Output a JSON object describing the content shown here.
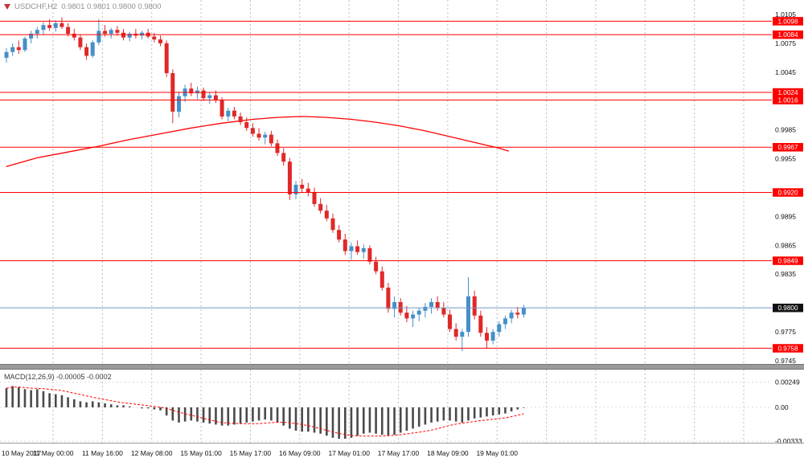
{
  "header": {
    "symbol": "USDCHF,H2",
    "ohlc": "0.9801 0.9801 0.9800 0.9800"
  },
  "macd_panel": {
    "label": "MACD(12,26,9) -0.00005 -0.0002"
  },
  "colors": {
    "bull": "#4590c8",
    "bear": "#e02828",
    "hline": "#ff0000",
    "grid": "#bdbdbd",
    "ma": "#ff0000",
    "signal": "#ff0000",
    "macd_bar": "#4a4a4a",
    "bid_line": "#7596c8",
    "current_label_bg": "#111111",
    "separator": "#9a9a9a",
    "axis_text": "#111111",
    "header_text": "#8f8f8f"
  },
  "chart_data": {
    "type": "candlestick",
    "title": "USDCHF,H2",
    "indicator": "MACD(12,26,9)",
    "x_labels": [
      "10 May 2017",
      "11 May 00:00",
      "11 May 16:00",
      "12 May 08:00",
      "15 May 01:00",
      "15 May 17:00",
      "16 May 09:00",
      "17 May 01:00",
      "17 May 17:00",
      "18 May 09:00",
      "19 May 01:00"
    ],
    "y_ticks": [
      1.0105,
      1.0075,
      1.0045,
      0.9985,
      0.9955,
      0.9895,
      0.9865,
      0.9835,
      0.9775,
      0.9745
    ],
    "hlines": [
      1.0098,
      1.0084,
      1.0024,
      1.0016,
      0.9967,
      0.992,
      0.9849,
      0.9758
    ],
    "current_price": 0.98,
    "candles": [
      [
        1.006,
        1.007,
        1.0055,
        1.0066
      ],
      [
        1.0066,
        1.0075,
        1.0062,
        1.0071
      ],
      [
        1.0071,
        1.0078,
        1.0064,
        1.0068
      ],
      [
        1.0068,
        1.0082,
        1.0066,
        1.008
      ],
      [
        1.008,
        1.0088,
        1.0075,
        1.0085
      ],
      [
        1.0085,
        1.0092,
        1.008,
        1.0089
      ],
      [
        1.0089,
        1.0097,
        1.0084,
        1.0094
      ],
      [
        1.0094,
        1.01,
        1.0088,
        1.0091
      ],
      [
        1.0091,
        1.0099,
        1.0087,
        1.0096
      ],
      [
        1.0096,
        1.0102,
        1.009,
        1.0092
      ],
      [
        1.0092,
        1.0096,
        1.0082,
        1.0085
      ],
      [
        1.0085,
        1.009,
        1.0078,
        1.0081
      ],
      [
        1.0081,
        1.0084,
        1.0068,
        1.0071
      ],
      [
        1.0071,
        1.0075,
        1.0058,
        1.0062
      ],
      [
        1.0062,
        1.0078,
        1.006,
        1.0076
      ],
      [
        1.0076,
        1.01,
        1.0073,
        1.0088
      ],
      [
        1.0088,
        1.0094,
        1.0082,
        1.0085
      ],
      [
        1.0085,
        1.0091,
        1.008,
        1.0089
      ],
      [
        1.0089,
        1.0093,
        1.0083,
        1.0086
      ],
      [
        1.0086,
        1.009,
        1.0078,
        1.0081
      ],
      [
        1.0081,
        1.0087,
        1.0077,
        1.0085
      ],
      [
        1.0085,
        1.009,
        1.008,
        1.0083
      ],
      [
        1.0083,
        1.0088,
        1.0079,
        1.0086
      ],
      [
        1.0086,
        1.009,
        1.008,
        1.0082
      ],
      [
        1.0082,
        1.0086,
        1.0076,
        1.0079
      ],
      [
        1.0079,
        1.0083,
        1.0072,
        1.0075
      ],
      [
        1.0075,
        1.0078,
        1.004,
        1.0044
      ],
      [
        1.0044,
        1.0048,
        0.9992,
        1.0004
      ],
      [
        1.0004,
        1.0025,
        0.9998,
        1.002
      ],
      [
        1.002,
        1.0032,
        1.0014,
        1.0028
      ],
      [
        1.0028,
        1.0034,
        1.002,
        1.0023
      ],
      [
        1.0023,
        1.003,
        1.0017,
        1.0026
      ],
      [
        1.0026,
        1.0029,
        1.0015,
        1.0018
      ],
      [
        1.0018,
        1.0024,
        1.0012,
        1.0021
      ],
      [
        1.0021,
        1.0026,
        1.0013,
        1.0016
      ],
      [
        1.0016,
        1.0019,
        0.9996,
        0.9999
      ],
      [
        0.9999,
        1.0008,
        0.9994,
        1.0005
      ],
      [
        1.0005,
        1.0009,
        0.9996,
        0.9999
      ],
      [
        0.9999,
        1.0003,
        0.999,
        0.9993
      ],
      [
        0.9993,
        0.9998,
        0.9984,
        0.9987
      ],
      [
        0.9987,
        0.9992,
        0.9978,
        0.9981
      ],
      [
        0.9981,
        0.9987,
        0.9974,
        0.9977
      ],
      [
        0.9977,
        0.9983,
        0.997,
        0.998
      ],
      [
        0.998,
        0.9984,
        0.9968,
        0.9971
      ],
      [
        0.9971,
        0.9975,
        0.9958,
        0.9961
      ],
      [
        0.9961,
        0.9966,
        0.9948,
        0.9952
      ],
      [
        0.9952,
        0.9956,
        0.9912,
        0.9918
      ],
      [
        0.9918,
        0.9932,
        0.9913,
        0.9928
      ],
      [
        0.9928,
        0.9934,
        0.992,
        0.9924
      ],
      [
        0.9924,
        0.993,
        0.9916,
        0.992
      ],
      [
        0.992,
        0.9925,
        0.9905,
        0.9908
      ],
      [
        0.9908,
        0.9914,
        0.9898,
        0.9901
      ],
      [
        0.9901,
        0.9907,
        0.989,
        0.9893
      ],
      [
        0.9893,
        0.9898,
        0.9878,
        0.9881
      ],
      [
        0.9881,
        0.9886,
        0.9868,
        0.9871
      ],
      [
        0.9871,
        0.9877,
        0.9855,
        0.9859
      ],
      [
        0.9859,
        0.9868,
        0.985,
        0.9864
      ],
      [
        0.9864,
        0.987,
        0.9855,
        0.9858
      ],
      [
        0.9858,
        0.9866,
        0.9851,
        0.9862
      ],
      [
        0.9862,
        0.9865,
        0.9845,
        0.9848
      ],
      [
        0.9848,
        0.9853,
        0.9835,
        0.9838
      ],
      [
        0.9838,
        0.9843,
        0.9818,
        0.9821
      ],
      [
        0.9821,
        0.9826,
        0.9795,
        0.9799
      ],
      [
        0.9799,
        0.9812,
        0.979,
        0.9806
      ],
      [
        0.9806,
        0.981,
        0.9792,
        0.9795
      ],
      [
        0.9795,
        0.9802,
        0.9785,
        0.9789
      ],
      [
        0.9789,
        0.9797,
        0.978,
        0.9793
      ],
      [
        0.9793,
        0.98,
        0.9786,
        0.9797
      ],
      [
        0.9797,
        0.9805,
        0.979,
        0.9801
      ],
      [
        0.9801,
        0.981,
        0.9794,
        0.9806
      ],
      [
        0.9806,
        0.9812,
        0.9797,
        0.98
      ],
      [
        0.98,
        0.9806,
        0.979,
        0.9793
      ],
      [
        0.9793,
        0.9798,
        0.9775,
        0.9778
      ],
      [
        0.9778,
        0.9784,
        0.9766,
        0.977
      ],
      [
        0.977,
        0.9778,
        0.9755,
        0.9775
      ],
      [
        0.9775,
        0.9832,
        0.977,
        0.9812
      ],
      [
        0.9812,
        0.9818,
        0.9788,
        0.9792
      ],
      [
        0.9792,
        0.9797,
        0.977,
        0.9774
      ],
      [
        0.9774,
        0.978,
        0.9758,
        0.9766
      ],
      [
        0.9766,
        0.9778,
        0.9762,
        0.9775
      ],
      [
        0.9775,
        0.9786,
        0.977,
        0.9783
      ],
      [
        0.9783,
        0.9792,
        0.9778,
        0.9789
      ],
      [
        0.9789,
        0.9798,
        0.9784,
        0.9795
      ],
      [
        0.9795,
        0.9801,
        0.9789,
        0.9793
      ],
      [
        0.9793,
        0.9803,
        0.979,
        0.98
      ]
    ],
    "ma_points": [
      [
        0,
        0.9947
      ],
      [
        5,
        0.9956
      ],
      [
        10,
        0.9962
      ],
      [
        15,
        0.9968
      ],
      [
        20,
        0.9975
      ],
      [
        25,
        0.9981
      ],
      [
        30,
        0.9987
      ],
      [
        35,
        0.9992
      ],
      [
        40,
        0.9996
      ],
      [
        44,
        0.9998
      ],
      [
        48,
        0.9999
      ],
      [
        52,
        0.9998
      ],
      [
        56,
        0.9996
      ],
      [
        60,
        0.9993
      ],
      [
        64,
        0.9989
      ],
      [
        68,
        0.9984
      ],
      [
        72,
        0.9978
      ],
      [
        76,
        0.9972
      ],
      [
        80,
        0.9966
      ],
      [
        81.5,
        0.9963
      ]
    ],
    "macd_hist": [
      0.0019,
      0.0021,
      0.002,
      0.0018,
      0.0017,
      0.0018,
      0.0016,
      0.0014,
      0.0013,
      0.0012,
      0.001,
      0.0008,
      0.0006,
      0.0005,
      0.0006,
      0.0005,
      0.0004,
      0.0003,
      0.0002,
      0.0002,
      0.0001,
      0.0,
      -0.0001,
      -0.0001,
      -0.0002,
      -0.0003,
      -0.0008,
      -0.0013,
      -0.0015,
      -0.0014,
      -0.0013,
      -0.0014,
      -0.0015,
      -0.0016,
      -0.0017,
      -0.0018,
      -0.0018,
      -0.0017,
      -0.0016,
      -0.0015,
      -0.0014,
      -0.0013,
      -0.0012,
      -0.0013,
      -0.0015,
      -0.0018,
      -0.0021,
      -0.0023,
      -0.0024,
      -0.0024,
      -0.0025,
      -0.0026,
      -0.0028,
      -0.003,
      -0.0031,
      -0.0031,
      -0.003,
      -0.0028,
      -0.0026,
      -0.0025,
      -0.0026,
      -0.0027,
      -0.0028,
      -0.0027,
      -0.0025,
      -0.0023,
      -0.0021,
      -0.0019,
      -0.0017,
      -0.0015,
      -0.0014,
      -0.0013,
      -0.0013,
      -0.0014,
      -0.0015,
      -0.0013,
      -0.0011,
      -0.001,
      -0.0009,
      -0.0008,
      -0.0007,
      -0.0006,
      -0.0004,
      -0.0002,
      -5e-05
    ],
    "macd_ticks": [
      "0.00249",
      "0.00",
      "-0.00333"
    ],
    "macd_tick_values": [
      0.00249,
      0,
      -0.00333
    ]
  }
}
